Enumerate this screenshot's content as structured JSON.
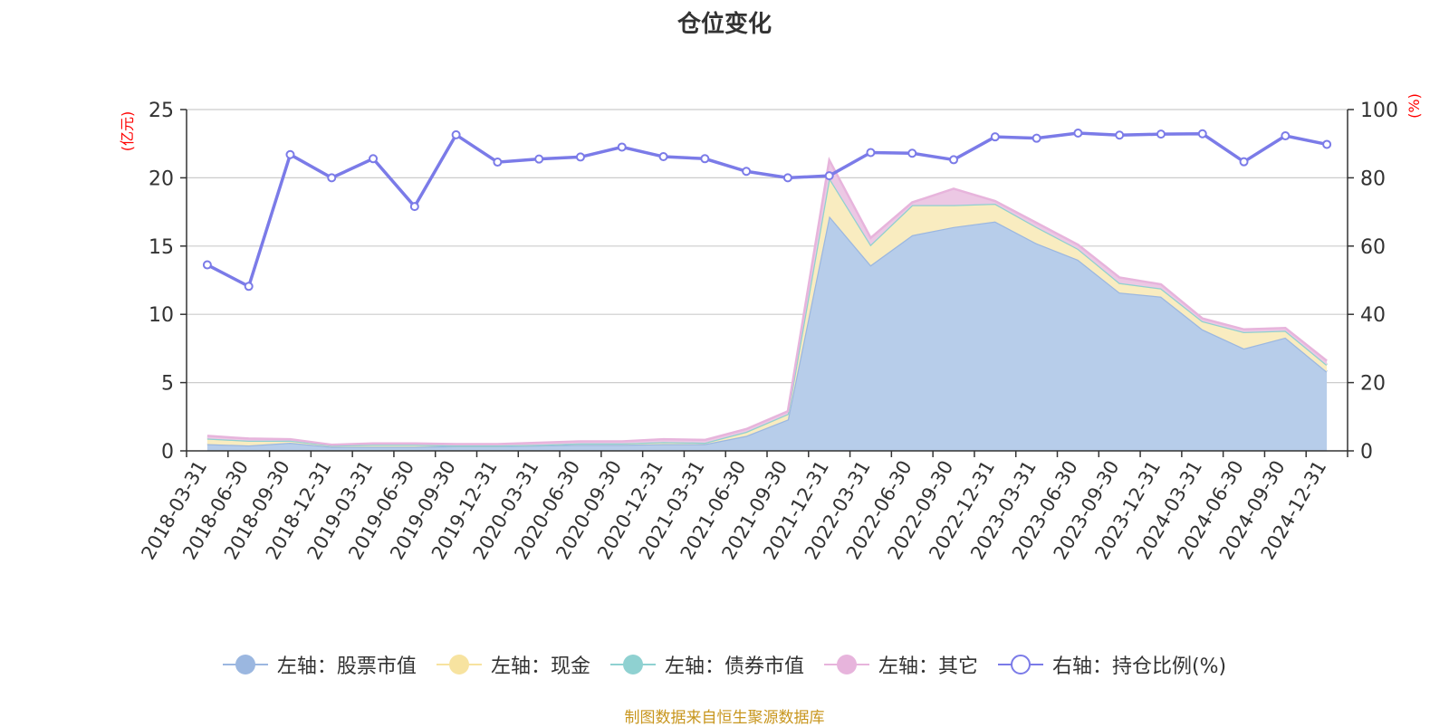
{
  "chart_data": {
    "type": "area",
    "title": "仓位变化",
    "y_left_unit": "(亿元)",
    "y_right_unit": "(%)",
    "y_left_ticks": [
      "0",
      "5",
      "10",
      "15",
      "20",
      "25"
    ],
    "y_right_ticks": [
      "0",
      "20",
      "40",
      "60",
      "80",
      "100"
    ],
    "ylim_left": [
      0,
      25
    ],
    "ylim_right": [
      0,
      100
    ],
    "categories": [
      "2018-03-31",
      "2018-06-30",
      "2018-09-30",
      "2018-12-31",
      "2019-03-31",
      "2019-06-30",
      "2019-09-30",
      "2019-12-31",
      "2020-03-31",
      "2020-06-30",
      "2020-09-30",
      "2020-12-31",
      "2021-03-31",
      "2021-06-30",
      "2021-09-30",
      "2021-12-31",
      "2022-03-31",
      "2022-06-30",
      "2022-09-30",
      "2022-12-31",
      "2023-03-31",
      "2023-06-30",
      "2023-09-30",
      "2023-12-31",
      "2024-03-31",
      "2024-06-30",
      "2024-09-30",
      "2024-12-31"
    ],
    "series": [
      {
        "name": "左轴：股票市值",
        "axis": "left",
        "color": "#9bb7e0",
        "fill": "#b7cdea",
        "values": [
          0.5,
          0.4,
          0.6,
          0.3,
          0.3,
          0.3,
          0.35,
          0.35,
          0.4,
          0.45,
          0.45,
          0.5,
          0.5,
          1.1,
          2.3,
          17.2,
          13.6,
          15.8,
          16.4,
          16.8,
          15.2,
          14.0,
          11.6,
          11.3,
          8.9,
          7.5,
          8.3,
          5.8
        ]
      },
      {
        "name": "左轴：现金",
        "axis": "left",
        "color": "#f7e3a0",
        "fill": "#f9ecc0",
        "values": [
          0.4,
          0.35,
          0.15,
          0.1,
          0.15,
          0.15,
          0.05,
          0.05,
          0.05,
          0.1,
          0.1,
          0.15,
          0.1,
          0.3,
          0.4,
          2.8,
          1.5,
          2.2,
          1.6,
          1.3,
          1.2,
          0.8,
          0.7,
          0.6,
          0.6,
          1.2,
          0.5,
          0.5
        ]
      },
      {
        "name": "左轴：债券市值",
        "axis": "left",
        "color": "#8fd1d1",
        "fill": "#a8dcdc",
        "values": [
          0,
          0,
          0,
          0,
          0,
          0,
          0,
          0,
          0,
          0,
          0,
          0,
          0,
          0,
          0,
          0,
          0,
          0,
          0,
          0,
          0,
          0,
          0,
          0,
          0,
          0,
          0,
          0
        ]
      },
      {
        "name": "左轴：其它",
        "axis": "left",
        "color": "#e7b4dc",
        "fill": "#ecc8e4",
        "values": [
          0.2,
          0.15,
          0.1,
          0.05,
          0.1,
          0.1,
          0.1,
          0.1,
          0.15,
          0.15,
          0.15,
          0.2,
          0.2,
          0.2,
          0.2,
          1.3,
          0.5,
          0.2,
          1.2,
          0.2,
          0.3,
          0.3,
          0.4,
          0.3,
          0.2,
          0.2,
          0.2,
          0.3
        ]
      },
      {
        "name": "右轴：持仓比例(%)",
        "axis": "right",
        "color": "#7b7be8",
        "values": [
          54.5,
          48.2,
          86.8,
          80.0,
          85.6,
          71.6,
          92.6,
          84.6,
          85.5,
          86.1,
          89.0,
          86.2,
          85.6,
          81.9,
          80.0,
          80.6,
          87.4,
          87.2,
          85.3,
          92.0,
          91.6,
          93.1,
          92.5,
          92.8,
          92.9,
          84.7,
          92.3,
          89.8
        ]
      }
    ]
  },
  "source_text": "制图数据来自恒生聚源数据库"
}
